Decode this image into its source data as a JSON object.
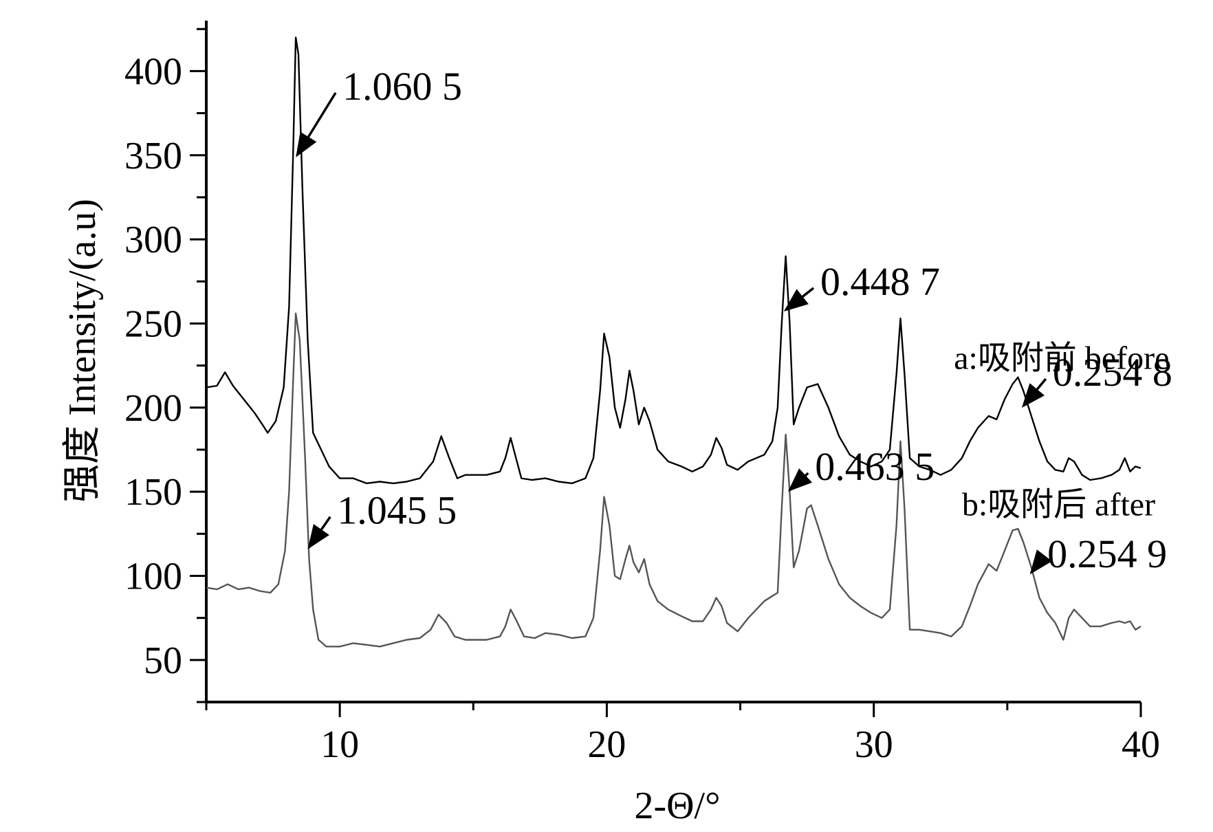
{
  "chart_data": {
    "type": "line",
    "xlabel": "2-Θ/°",
    "ylabel": "强度 Intensity/(a.u)",
    "xlim": [
      5,
      40
    ],
    "ylim": [
      25,
      430
    ],
    "x_ticks": [
      10,
      20,
      30,
      40
    ],
    "y_ticks": [
      50,
      100,
      150,
      200,
      250,
      300,
      350,
      400
    ],
    "grid": false,
    "legend": "none",
    "series": [
      {
        "name": "a:吸附前 before",
        "color": "#000000",
        "points": [
          [
            5.0,
            212
          ],
          [
            5.4,
            213
          ],
          [
            5.7,
            221
          ],
          [
            6.0,
            213
          ],
          [
            6.4,
            205
          ],
          [
            6.8,
            197
          ],
          [
            7.1,
            190
          ],
          [
            7.3,
            185
          ],
          [
            7.6,
            192
          ],
          [
            7.9,
            212
          ],
          [
            8.1,
            260
          ],
          [
            8.25,
            350
          ],
          [
            8.35,
            420
          ],
          [
            8.45,
            410
          ],
          [
            8.6,
            330
          ],
          [
            8.8,
            240
          ],
          [
            9.0,
            185
          ],
          [
            9.3,
            175
          ],
          [
            9.6,
            165
          ],
          [
            10.0,
            158
          ],
          [
            10.5,
            158
          ],
          [
            11.0,
            155
          ],
          [
            11.5,
            156
          ],
          [
            12.0,
            155
          ],
          [
            12.5,
            156
          ],
          [
            13.0,
            158
          ],
          [
            13.5,
            168
          ],
          [
            13.8,
            183
          ],
          [
            14.1,
            170
          ],
          [
            14.4,
            158
          ],
          [
            14.7,
            160
          ],
          [
            15.0,
            160
          ],
          [
            15.5,
            160
          ],
          [
            16.0,
            162
          ],
          [
            16.2,
            170
          ],
          [
            16.4,
            182
          ],
          [
            16.6,
            170
          ],
          [
            16.8,
            158
          ],
          [
            17.2,
            157
          ],
          [
            17.7,
            158
          ],
          [
            18.2,
            156
          ],
          [
            18.7,
            155
          ],
          [
            19.2,
            158
          ],
          [
            19.5,
            170
          ],
          [
            19.75,
            210
          ],
          [
            19.9,
            244
          ],
          [
            20.1,
            230
          ],
          [
            20.3,
            200
          ],
          [
            20.5,
            188
          ],
          [
            20.7,
            205
          ],
          [
            20.85,
            222
          ],
          [
            21.0,
            210
          ],
          [
            21.2,
            190
          ],
          [
            21.4,
            200
          ],
          [
            21.6,
            192
          ],
          [
            21.9,
            175
          ],
          [
            22.3,
            168
          ],
          [
            22.8,
            165
          ],
          [
            23.2,
            162
          ],
          [
            23.6,
            165
          ],
          [
            23.9,
            172
          ],
          [
            24.1,
            182
          ],
          [
            24.3,
            176
          ],
          [
            24.5,
            166
          ],
          [
            24.9,
            163
          ],
          [
            25.3,
            168
          ],
          [
            25.6,
            170
          ],
          [
            25.9,
            172
          ],
          [
            26.2,
            180
          ],
          [
            26.4,
            200
          ],
          [
            26.55,
            250
          ],
          [
            26.7,
            290
          ],
          [
            26.85,
            250
          ],
          [
            27.0,
            190
          ],
          [
            27.2,
            200
          ],
          [
            27.5,
            212
          ],
          [
            27.9,
            214
          ],
          [
            28.3,
            200
          ],
          [
            28.7,
            183
          ],
          [
            29.1,
            172
          ],
          [
            29.5,
            168
          ],
          [
            29.9,
            165
          ],
          [
            30.3,
            168
          ],
          [
            30.6,
            175
          ],
          [
            30.85,
            220
          ],
          [
            31.0,
            253
          ],
          [
            31.15,
            220
          ],
          [
            31.35,
            170
          ],
          [
            31.7,
            165
          ],
          [
            32.1,
            163
          ],
          [
            32.5,
            160
          ],
          [
            32.9,
            163
          ],
          [
            33.3,
            170
          ],
          [
            33.6,
            180
          ],
          [
            33.9,
            188
          ],
          [
            34.3,
            195
          ],
          [
            34.6,
            193
          ],
          [
            34.9,
            205
          ],
          [
            35.2,
            214
          ],
          [
            35.4,
            218
          ],
          [
            35.6,
            210
          ],
          [
            35.9,
            195
          ],
          [
            36.2,
            180
          ],
          [
            36.5,
            168
          ],
          [
            36.8,
            163
          ],
          [
            37.1,
            162
          ],
          [
            37.3,
            170
          ],
          [
            37.5,
            168
          ],
          [
            37.8,
            160
          ],
          [
            38.1,
            157
          ],
          [
            38.5,
            158
          ],
          [
            38.9,
            160
          ],
          [
            39.2,
            163
          ],
          [
            39.4,
            170
          ],
          [
            39.6,
            162
          ],
          [
            39.8,
            165
          ],
          [
            40.0,
            164
          ]
        ]
      },
      {
        "name": "b:吸附后 after",
        "color": "#555555",
        "points": [
          [
            5.0,
            93
          ],
          [
            5.4,
            92
          ],
          [
            5.8,
            95
          ],
          [
            6.2,
            92
          ],
          [
            6.6,
            93
          ],
          [
            7.0,
            91
          ],
          [
            7.4,
            90
          ],
          [
            7.7,
            95
          ],
          [
            7.95,
            115
          ],
          [
            8.1,
            150
          ],
          [
            8.25,
            215
          ],
          [
            8.35,
            256
          ],
          [
            8.5,
            240
          ],
          [
            8.7,
            170
          ],
          [
            8.85,
            110
          ],
          [
            9.0,
            80
          ],
          [
            9.2,
            62
          ],
          [
            9.5,
            58
          ],
          [
            10.0,
            58
          ],
          [
            10.5,
            60
          ],
          [
            11.0,
            59
          ],
          [
            11.5,
            58
          ],
          [
            12.0,
            60
          ],
          [
            12.5,
            62
          ],
          [
            13.0,
            63
          ],
          [
            13.4,
            68
          ],
          [
            13.7,
            77
          ],
          [
            14.0,
            72
          ],
          [
            14.3,
            64
          ],
          [
            14.7,
            62
          ],
          [
            15.0,
            62
          ],
          [
            15.5,
            62
          ],
          [
            16.0,
            64
          ],
          [
            16.2,
            70
          ],
          [
            16.4,
            80
          ],
          [
            16.6,
            74
          ],
          [
            16.9,
            64
          ],
          [
            17.3,
            63
          ],
          [
            17.7,
            66
          ],
          [
            18.2,
            65
          ],
          [
            18.7,
            63
          ],
          [
            19.2,
            64
          ],
          [
            19.5,
            75
          ],
          [
            19.75,
            115
          ],
          [
            19.9,
            147
          ],
          [
            20.1,
            130
          ],
          [
            20.3,
            100
          ],
          [
            20.5,
            98
          ],
          [
            20.7,
            110
          ],
          [
            20.85,
            118
          ],
          [
            21.0,
            108
          ],
          [
            21.2,
            102
          ],
          [
            21.4,
            110
          ],
          [
            21.6,
            95
          ],
          [
            21.9,
            85
          ],
          [
            22.3,
            80
          ],
          [
            22.8,
            76
          ],
          [
            23.2,
            73
          ],
          [
            23.6,
            73
          ],
          [
            23.9,
            80
          ],
          [
            24.1,
            87
          ],
          [
            24.3,
            82
          ],
          [
            24.5,
            72
          ],
          [
            24.9,
            67
          ],
          [
            25.3,
            75
          ],
          [
            25.6,
            80
          ],
          [
            25.9,
            85
          ],
          [
            26.2,
            88
          ],
          [
            26.4,
            90
          ],
          [
            26.55,
            140
          ],
          [
            26.7,
            184
          ],
          [
            26.85,
            150
          ],
          [
            27.0,
            105
          ],
          [
            27.2,
            115
          ],
          [
            27.5,
            140
          ],
          [
            27.65,
            142
          ],
          [
            27.9,
            130
          ],
          [
            28.3,
            110
          ],
          [
            28.7,
            95
          ],
          [
            29.1,
            87
          ],
          [
            29.5,
            82
          ],
          [
            29.9,
            78
          ],
          [
            30.3,
            75
          ],
          [
            30.6,
            80
          ],
          [
            30.85,
            130
          ],
          [
            31.0,
            180
          ],
          [
            31.15,
            140
          ],
          [
            31.35,
            68
          ],
          [
            31.7,
            68
          ],
          [
            32.1,
            67
          ],
          [
            32.5,
            66
          ],
          [
            32.9,
            64
          ],
          [
            33.3,
            70
          ],
          [
            33.6,
            82
          ],
          [
            33.9,
            95
          ],
          [
            34.3,
            107
          ],
          [
            34.6,
            103
          ],
          [
            34.9,
            115
          ],
          [
            35.2,
            127
          ],
          [
            35.4,
            128
          ],
          [
            35.6,
            120
          ],
          [
            35.9,
            105
          ],
          [
            36.2,
            87
          ],
          [
            36.5,
            78
          ],
          [
            36.8,
            72
          ],
          [
            37.1,
            62
          ],
          [
            37.3,
            75
          ],
          [
            37.5,
            80
          ],
          [
            37.8,
            75
          ],
          [
            38.1,
            70
          ],
          [
            38.5,
            70
          ],
          [
            38.9,
            72
          ],
          [
            39.2,
            73
          ],
          [
            39.4,
            72
          ],
          [
            39.6,
            73
          ],
          [
            39.8,
            68
          ],
          [
            40.0,
            70
          ]
        ]
      }
    ],
    "annotations": [
      {
        "text": "1.060 5",
        "x": 8.4,
        "y": 350,
        "label_x": 10.1,
        "label_y": 383
      },
      {
        "text": "0.448 7",
        "x": 26.7,
        "y": 258,
        "label_x": 28.0,
        "label_y": 267
      },
      {
        "text": "0.254 8",
        "x": 35.6,
        "y": 201,
        "label_x": 36.7,
        "label_y": 213
      },
      {
        "text": "1.045 5",
        "x": 8.85,
        "y": 117,
        "label_x": 9.9,
        "label_y": 131
      },
      {
        "text": "0.463 5",
        "x": 26.85,
        "y": 151,
        "label_x": 27.8,
        "label_y": 157
      },
      {
        "text": "0.254 9",
        "x": 35.9,
        "y": 102,
        "label_x": 36.5,
        "label_y": 105
      }
    ],
    "series_labels": [
      {
        "text": "a:吸附前 before",
        "x": 33.0,
        "y": 223
      },
      {
        "text": "b:吸附后 after",
        "x": 33.3,
        "y": 136
      }
    ]
  }
}
